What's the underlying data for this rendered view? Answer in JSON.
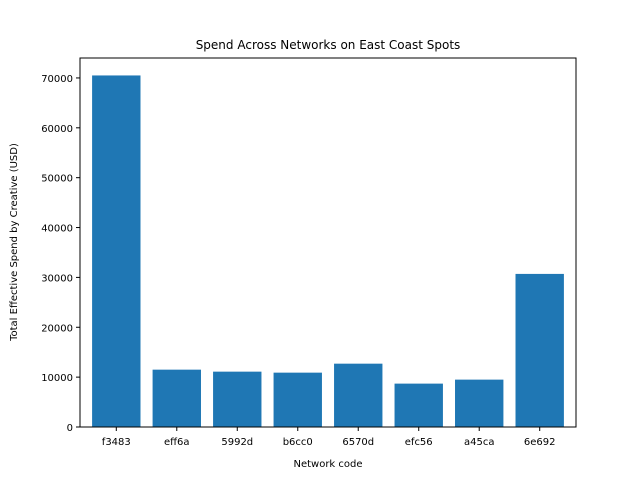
{
  "chart_data": {
    "type": "bar",
    "title": "Spend Across Networks on East Coast Spots",
    "xlabel": "Network code",
    "ylabel": "Total Effective Spend by Creative (USD)",
    "categories": [
      "f3483",
      "eff6a",
      "5992d",
      "b6cc0",
      "6570d",
      "efc56",
      "a45ca",
      "6e692"
    ],
    "values": [
      70500,
      11500,
      11100,
      10900,
      12700,
      8700,
      9500,
      30700
    ],
    "ylim": [
      0,
      74000
    ],
    "yticks": [
      0,
      10000,
      20000,
      30000,
      40000,
      50000,
      60000,
      70000
    ],
    "bar_color": "#1f77b4",
    "grid": false,
    "legend": "none"
  }
}
